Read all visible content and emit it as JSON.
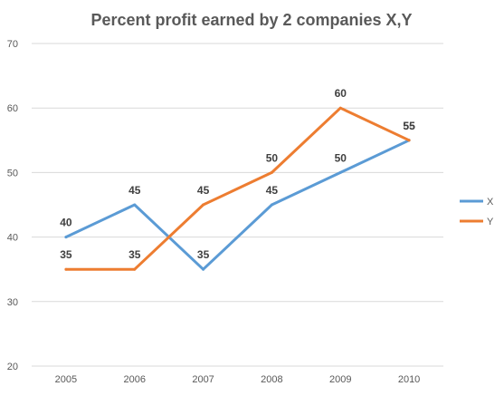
{
  "chart_data": {
    "type": "line",
    "title": "Percent profit earned by 2 companies X,Y",
    "xlabel": "",
    "ylabel": "",
    "categories": [
      "2005",
      "2006",
      "2007",
      "2008",
      "2009",
      "2010"
    ],
    "ylim": [
      20,
      70
    ],
    "yticks": [
      20,
      30,
      40,
      50,
      60,
      70
    ],
    "grid": true,
    "legend_position": "right",
    "series": [
      {
        "name": "X",
        "color": "#5b9bd5",
        "values": [
          40,
          45,
          35,
          45,
          50,
          55
        ]
      },
      {
        "name": "Y",
        "color": "#ed7d31",
        "values": [
          35,
          35,
          45,
          50,
          60,
          55
        ]
      }
    ]
  }
}
